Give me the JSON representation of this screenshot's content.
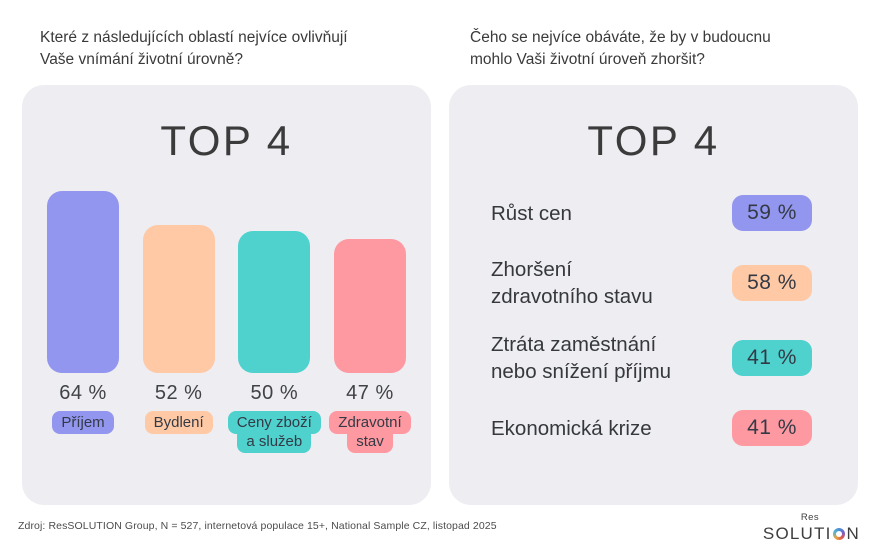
{
  "header": {
    "left_question": "Které z následujících oblastí nejvíce ovlivňují\nVaše vnímání životní úrovně?",
    "right_question": "Čeho se nejvíce obáváte, že by v budoucnu\nmohlo Vaši životní úroveň zhoršit?"
  },
  "colors": {
    "panel_background": "#EDEDF2",
    "page_background": "#FFFFFF",
    "purple": "#9396EF",
    "peach": "#FFC9A5",
    "teal": "#4FD1CE",
    "pink": "#FF99A1",
    "text_dark": "#3B3B3B"
  },
  "chart_data": [
    {
      "type": "bar",
      "panel": "left",
      "title": "TOP 4",
      "question": "Které z následujících oblastí nejvíce ovlivňují Vaše vnímání životní úrovně?",
      "categories": [
        "Příjem",
        "Bydlení",
        "Ceny zboží a služeb",
        "Zdravotní stav"
      ],
      "category_lines": [
        [
          "Příjem",
          ""
        ],
        [
          "Bydlení",
          ""
        ],
        [
          "Ceny zboží",
          "a služeb"
        ],
        [
          "Zdravotní",
          "stav"
        ]
      ],
      "values": [
        64,
        52,
        50,
        47
      ],
      "value_labels": [
        "64 %",
        "52 %",
        "50 %",
        "47 %"
      ],
      "unit": "%",
      "colors": [
        "#9396EF",
        "#FFC9A5",
        "#4FD1CE",
        "#FF99A1"
      ],
      "ylim": [
        0,
        64
      ],
      "grid": false,
      "legend": false
    },
    {
      "type": "bar",
      "panel": "right",
      "orientation": "badge-list",
      "title": "TOP 4",
      "question": "Čeho se nejvíce obáváte, že by v budoucnu mohlo Vaši životní úroveň zhoršit?",
      "categories": [
        "Růst cen",
        "Zhoršení zdravotního stavu",
        "Ztráta zaměstnání nebo snížení příjmu",
        "Ekonomická krize"
      ],
      "category_display": [
        "Růst cen",
        "Zhoršení\nzdravotního stavu",
        "Ztráta zaměstnání\nnebo snížení příjmu",
        "Ekonomická krize"
      ],
      "values": [
        59,
        58,
        41,
        41
      ],
      "value_labels": [
        "59 %",
        "58 %",
        "41 %",
        "41 %"
      ],
      "unit": "%",
      "colors": [
        "#9396EF",
        "#FFC9A5",
        "#4FD1CE",
        "#FF99A1"
      ],
      "grid": false,
      "legend": false
    }
  ],
  "footer": {
    "source": "Zdroj: ResSOLUTION Group, N = 527, internetová populace 15+, National Sample CZ, listopad 2025"
  },
  "logo": {
    "res": "Res",
    "word_pre": "SOLUTI",
    "word_o": "O",
    "word_post": "N"
  }
}
